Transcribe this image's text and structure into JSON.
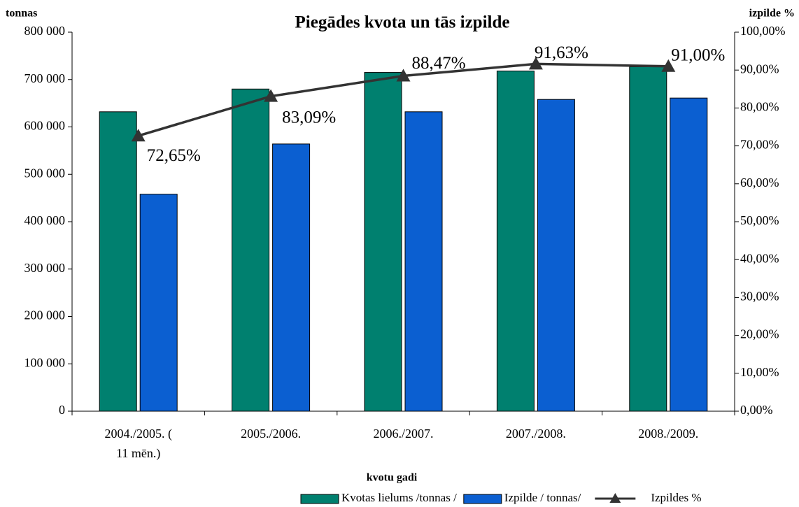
{
  "chart_data": {
    "type": "bar_line",
    "title": "Piegādes kvota un tās izpilde",
    "y_label": "tonnas",
    "y2_label": "izpilde %",
    "x_label": "kvotu gadi",
    "categories": [
      "2004./2005. ( 11 mēn.)",
      "2005./2006.",
      "2006./2007.",
      "2007./2008.",
      "2008./2009."
    ],
    "series": [
      {
        "name": "Kvotas lielums /tonnas /",
        "type": "bar",
        "color": "#00806f",
        "values": [
          632000,
          680000,
          715000,
          718000,
          727000
        ]
      },
      {
        "name": "Izpilde / tonnas/",
        "type": "bar",
        "color": "#0b5fd1",
        "values": [
          458000,
          564000,
          632000,
          658000,
          661000
        ]
      },
      {
        "name": "Izpildes %",
        "type": "line",
        "axis": "y2",
        "color": "#333333",
        "values": [
          72.65,
          83.09,
          88.47,
          91.63,
          91.0
        ],
        "value_labels": [
          "72,65%",
          "83,09%",
          "88,47%",
          "91,63%",
          "91,00%"
        ]
      }
    ],
    "ylim": [
      0,
      800000
    ],
    "yticks": [
      0,
      {
        "value": 100000,
        "label": "100 000"
      },
      {
        "value": 200000,
        "label": "200 000"
      },
      {
        "value": 300000,
        "label": "300 000"
      },
      {
        "value": 400000,
        "label": "400 000"
      },
      {
        "value": 500000,
        "label": "500 000"
      },
      {
        "value": 600000,
        "label": "600 000"
      },
      {
        "value": 700000,
        "label": "700 000"
      },
      {
        "value": 800000,
        "label": "800 000"
      }
    ],
    "y2lim": [
      0,
      100
    ],
    "y2ticks": [
      {
        "value": 0,
        "label": "0,00%"
      },
      {
        "value": 10,
        "label": "10,00%"
      },
      {
        "value": 20,
        "label": "20,00%"
      },
      {
        "value": 30,
        "label": "30,00%"
      },
      {
        "value": 40,
        "label": "40,00%"
      },
      {
        "value": 50,
        "label": "50,00%"
      },
      {
        "value": 60,
        "label": "60,00%"
      },
      {
        "value": 70,
        "label": "70,00%"
      },
      {
        "value": 80,
        "label": "80,00%"
      },
      {
        "value": 90,
        "label": "90,00%"
      },
      {
        "value": 100,
        "label": "100,00%"
      }
    ],
    "legend": "bottom-right"
  }
}
